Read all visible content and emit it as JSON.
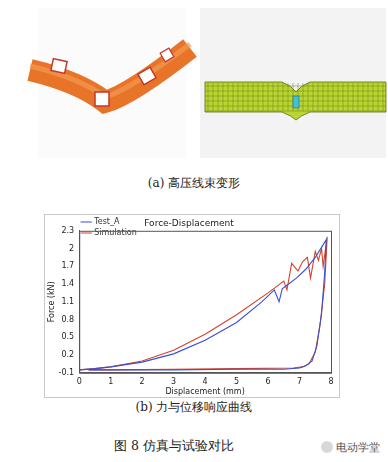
{
  "figure": {
    "panel_a_caption": "(a) 高压线束变形",
    "panel_b_caption": "(b) 力与位移响应曲线",
    "caption": "图 8  仿真与试验对比",
    "watermark": "电动学堂"
  },
  "chart_data": {
    "type": "line",
    "title": "Force-Displacement",
    "x_label": "Displacement (mm)",
    "y_label": "Force (kN)",
    "series": [
      {
        "name": "Test_A",
        "color": "#3a4fd4",
        "x": [
          0,
          0.5,
          1,
          2,
          3,
          4,
          5,
          5.8,
          6.2,
          6.35,
          6.45,
          6.6,
          6.9,
          7.2,
          7.5,
          7.7,
          7.85,
          7.8,
          7.7,
          7.55,
          7.4,
          7.2,
          7.0,
          6.5,
          5,
          3,
          1,
          0.3
        ],
        "values": [
          -0.05,
          -0.03,
          0.0,
          0.08,
          0.22,
          0.45,
          0.75,
          1.1,
          1.3,
          1.1,
          1.32,
          1.38,
          1.5,
          1.65,
          1.85,
          2.02,
          2.15,
          1.6,
          0.9,
          0.35,
          0.1,
          0.02,
          -0.02,
          -0.04,
          -0.04,
          -0.05,
          -0.05,
          -0.05
        ]
      },
      {
        "name": "Simulation",
        "color": "#d2432a",
        "x": [
          0,
          0.5,
          1,
          2,
          3,
          4,
          5,
          6,
          6.5,
          6.6,
          6.75,
          6.95,
          7.1,
          7.25,
          7.35,
          7.5,
          7.6,
          7.7,
          7.75,
          7.88,
          7.8,
          7.65,
          7.5,
          7.3,
          7.1,
          6.8,
          5,
          3,
          1,
          0.3
        ],
        "values": [
          -0.05,
          -0.03,
          0.0,
          0.1,
          0.28,
          0.55,
          0.88,
          1.25,
          1.45,
          1.3,
          1.75,
          1.62,
          1.78,
          1.85,
          1.5,
          1.95,
          1.8,
          2.0,
          1.7,
          2.2,
          1.4,
          0.7,
          0.25,
          0.05,
          0.0,
          -0.02,
          -0.03,
          -0.04,
          -0.05,
          -0.05
        ]
      }
    ],
    "xlim": [
      0,
      8
    ],
    "xticks": [
      0,
      1,
      2,
      3,
      4,
      5,
      6,
      7,
      8
    ],
    "ylim": [
      -0.1,
      2.3
    ],
    "yticks": [
      -0.1,
      0.2,
      0.5,
      0.8,
      1.1,
      1.4,
      1.7,
      2,
      2.3
    ],
    "grid": false,
    "legend": "upper left"
  }
}
